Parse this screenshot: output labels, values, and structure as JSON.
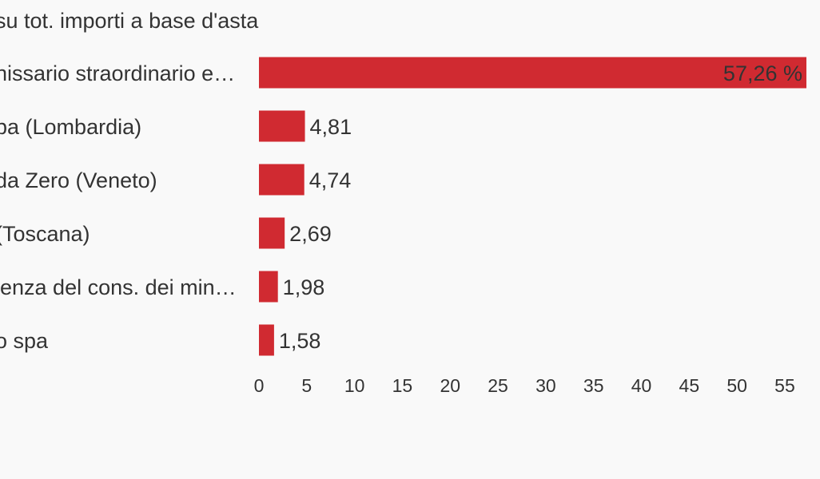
{
  "chart_data": {
    "type": "bar",
    "orientation": "horizontal",
    "title": "su tot. importi a base d'asta",
    "categories": [
      "nissario straordinario e…",
      "pa (Lombardia)",
      "da Zero (Veneto)",
      "(Toscana)",
      "lenza del cons. dei min…",
      "o spa"
    ],
    "values": [
      57.26,
      4.81,
      4.74,
      2.69,
      1.98,
      1.58
    ],
    "value_labels": [
      "57,26 %",
      "4,81",
      "4,74",
      "2,69",
      "1,98",
      "1,58"
    ],
    "xlim": [
      0,
      57.26
    ],
    "xticks": [
      0,
      5,
      10,
      15,
      20,
      25,
      30,
      35,
      40,
      45,
      50,
      55
    ],
    "xtick_labels": [
      "0",
      "5",
      "10",
      "15",
      "20",
      "25",
      "30",
      "35",
      "40",
      "45",
      "50",
      "55"
    ],
    "grid": false,
    "legend": "none",
    "bar_color": "#d02a31",
    "text_color": "#333333",
    "background_color": "#f9f9f9"
  }
}
